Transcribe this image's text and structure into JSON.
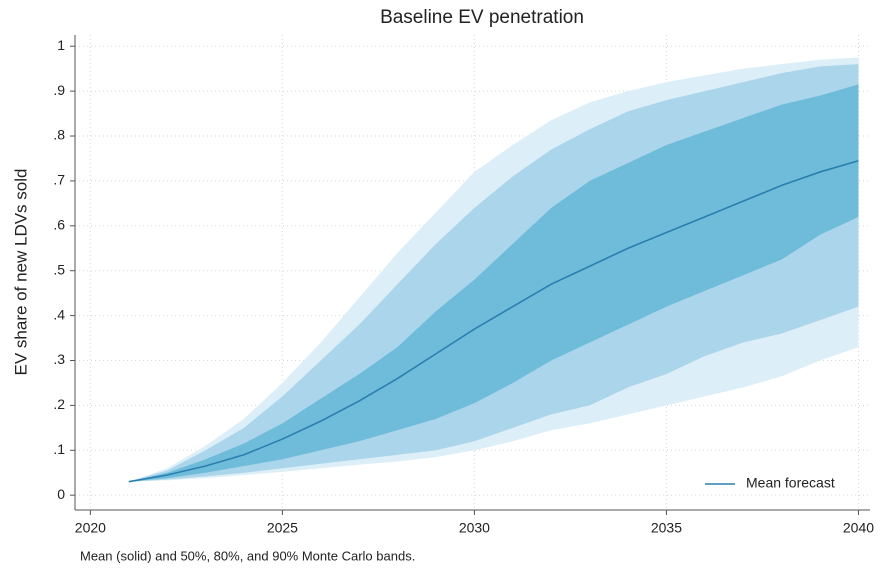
{
  "chart_data": {
    "type": "band-line",
    "title": "Baseline EV penetration",
    "y_label": "EV share of new LDVs sold",
    "note": "Mean (solid) and 50%, 80%, and 90% Monte Carlo bands.",
    "x": [
      2021,
      2022,
      2023,
      2024,
      2025,
      2026,
      2027,
      2028,
      2029,
      2030,
      2031,
      2032,
      2033,
      2034,
      2035,
      2036,
      2037,
      2038,
      2039,
      2040
    ],
    "series": [
      {
        "name": "Mean forecast",
        "color": "#2b7fb0",
        "values": [
          0.03,
          0.045,
          0.065,
          0.09,
          0.125,
          0.165,
          0.21,
          0.26,
          0.315,
          0.37,
          0.42,
          0.47,
          0.51,
          0.55,
          0.585,
          0.62,
          0.655,
          0.69,
          0.72,
          0.745
        ]
      }
    ],
    "bands": [
      {
        "color": "#dceef7",
        "lower": [
          0.03,
          0.033,
          0.038,
          0.045,
          0.052,
          0.06,
          0.068,
          0.075,
          0.085,
          0.1,
          0.12,
          0.145,
          0.16,
          0.18,
          0.2,
          0.22,
          0.24,
          0.265,
          0.3,
          0.33
        ],
        "upper": [
          0.03,
          0.06,
          0.11,
          0.17,
          0.25,
          0.34,
          0.44,
          0.54,
          0.63,
          0.72,
          0.78,
          0.835,
          0.875,
          0.9,
          0.92,
          0.935,
          0.95,
          0.96,
          0.97,
          0.975
        ]
      },
      {
        "color": "#aad5ea",
        "lower": [
          0.03,
          0.035,
          0.042,
          0.05,
          0.06,
          0.07,
          0.08,
          0.09,
          0.1,
          0.12,
          0.15,
          0.18,
          0.2,
          0.24,
          0.27,
          0.31,
          0.34,
          0.36,
          0.39,
          0.42
        ],
        "upper": [
          0.03,
          0.055,
          0.1,
          0.15,
          0.22,
          0.3,
          0.38,
          0.47,
          0.56,
          0.64,
          0.71,
          0.77,
          0.815,
          0.855,
          0.88,
          0.9,
          0.92,
          0.94,
          0.955,
          0.96
        ]
      },
      {
        "color": "#6fbcda",
        "lower": [
          0.03,
          0.038,
          0.05,
          0.065,
          0.08,
          0.1,
          0.12,
          0.145,
          0.17,
          0.205,
          0.25,
          0.3,
          0.34,
          0.38,
          0.42,
          0.455,
          0.49,
          0.525,
          0.58,
          0.62
        ],
        "upper": [
          0.03,
          0.05,
          0.08,
          0.115,
          0.16,
          0.215,
          0.27,
          0.33,
          0.41,
          0.48,
          0.56,
          0.64,
          0.7,
          0.74,
          0.78,
          0.81,
          0.84,
          0.87,
          0.89,
          0.915
        ]
      }
    ],
    "xlim": [
      2019.6,
      2040.3
    ],
    "xticks": [
      2020,
      2025,
      2030,
      2035,
      2040
    ],
    "ylim": [
      -0.033,
      1.025
    ],
    "yticks": [
      0,
      {
        "value": 0.1,
        "label": ".1"
      },
      {
        "value": 0.2,
        "label": ".2"
      },
      {
        "value": 0.3,
        "label": ".3"
      },
      {
        "value": 0.4,
        "label": ".4"
      },
      {
        "value": 0.5,
        "label": ".5"
      },
      {
        "value": 0.6,
        "label": ".6"
      },
      {
        "value": 0.7,
        "label": ".7"
      },
      {
        "value": 0.8,
        "label": ".8"
      },
      {
        "value": 0.9,
        "label": ".9"
      },
      1
    ],
    "grid": true,
    "legend": "bottom-right"
  }
}
